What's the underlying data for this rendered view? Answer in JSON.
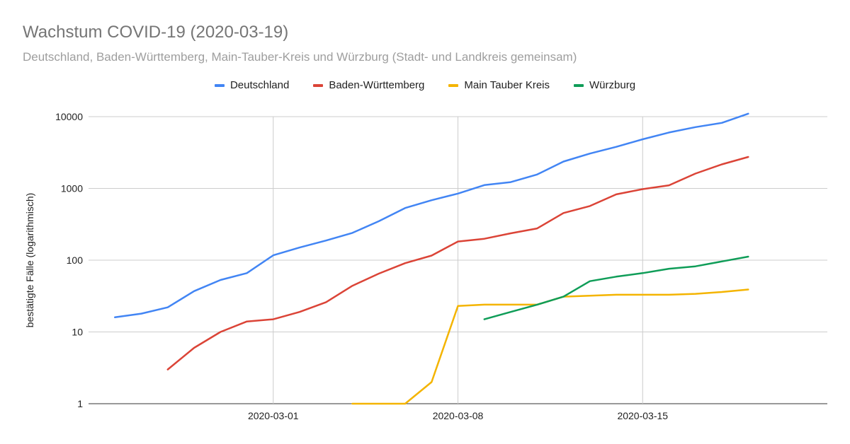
{
  "chart_data": {
    "type": "line",
    "title": "Wachstum COVID-19 (2020-03-19)",
    "subtitle": "Deutschland, Baden-Württemberg, Main-Tauber-Kreis und Würzburg (Stadt- und Landkreis gemeinsam)",
    "xlabel": "",
    "ylabel": "bestätigte Fälle (logarithmisch)",
    "yscale": "log",
    "ylim": [
      1,
      10000
    ],
    "xlim": [
      "2020-02-23",
      "2020-03-22"
    ],
    "y_ticks": [
      1,
      10,
      100,
      1000,
      10000
    ],
    "x_ticks": [
      "2020-03-01",
      "2020-03-08",
      "2020-03-15"
    ],
    "grid": true,
    "legend_position": "top",
    "x": [
      "2020-02-24",
      "2020-02-25",
      "2020-02-26",
      "2020-02-27",
      "2020-02-28",
      "2020-02-29",
      "2020-03-01",
      "2020-03-02",
      "2020-03-03",
      "2020-03-04",
      "2020-03-05",
      "2020-03-06",
      "2020-03-07",
      "2020-03-08",
      "2020-03-09",
      "2020-03-10",
      "2020-03-11",
      "2020-03-12",
      "2020-03-13",
      "2020-03-14",
      "2020-03-15",
      "2020-03-16",
      "2020-03-17",
      "2020-03-18",
      "2020-03-19"
    ],
    "series": [
      {
        "name": "Deutschland",
        "color": "#4285f4",
        "values": [
          16,
          18,
          22,
          37,
          53,
          66,
          117,
          150,
          188,
          240,
          349,
          534,
          684,
          847,
          1112,
          1224,
          1565,
          2369,
          3062,
          3795,
          4838,
          6012,
          7156,
          8198,
          10999
        ]
      },
      {
        "name": "Baden-Württemberg",
        "color": "#db4437",
        "values": [
          null,
          null,
          3,
          6,
          10,
          14,
          15,
          19,
          26,
          44,
          65,
          91,
          116,
          182,
          199,
          237,
          277,
          454,
          569,
          827,
          977,
          1105,
          1609,
          2165,
          2746
        ]
      },
      {
        "name": "Main Tauber Kreis",
        "color": "#f4b400",
        "values": [
          null,
          null,
          null,
          null,
          null,
          null,
          null,
          null,
          null,
          1,
          1,
          1,
          2,
          23,
          24,
          24,
          24,
          31,
          32,
          33,
          33,
          33,
          34,
          36,
          39
        ]
      },
      {
        "name": "Würzburg",
        "color": "#0f9d58",
        "values": [
          null,
          null,
          null,
          null,
          null,
          null,
          null,
          null,
          null,
          null,
          null,
          null,
          null,
          null,
          15,
          19,
          24,
          31,
          51,
          59,
          66,
          76,
          82,
          96,
          112
        ]
      }
    ]
  }
}
